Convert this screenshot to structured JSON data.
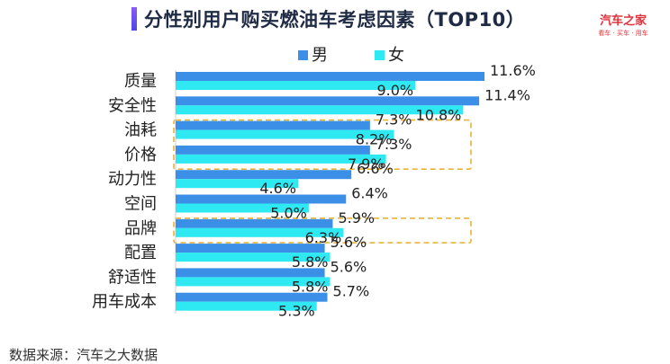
{
  "header": {
    "title": "分性别用户购买燃油车考虑因素（TOP10）",
    "brand_name": "汽车之家",
    "brand_slogan": "看车 · 买车 · 用车"
  },
  "footer": {
    "source": "数据来源：汽车之大数据"
  },
  "colors": {
    "male": "#3b8fe6",
    "female": "#2ee8f2",
    "highlight_border": "#e8b43a",
    "brand": "#e0323c"
  },
  "chart_data": {
    "type": "bar",
    "orientation": "horizontal",
    "categories": [
      "质量",
      "安全性",
      "油耗",
      "价格",
      "动力性",
      "空间",
      "品牌",
      "配置",
      "舒适性",
      "用车成本"
    ],
    "series": [
      {
        "name": "男",
        "values": [
          11.6,
          11.4,
          7.3,
          7.3,
          6.6,
          6.4,
          5.9,
          5.6,
          5.6,
          5.7
        ]
      },
      {
        "name": "女",
        "values": [
          9.0,
          10.8,
          8.2,
          7.9,
          4.6,
          5.0,
          6.3,
          5.8,
          5.8,
          5.3
        ]
      }
    ],
    "value_suffix": "%",
    "legend": "top",
    "highlighted_groups": [
      [
        "油耗",
        "价格"
      ],
      [
        "品牌"
      ]
    ],
    "grid": false
  }
}
